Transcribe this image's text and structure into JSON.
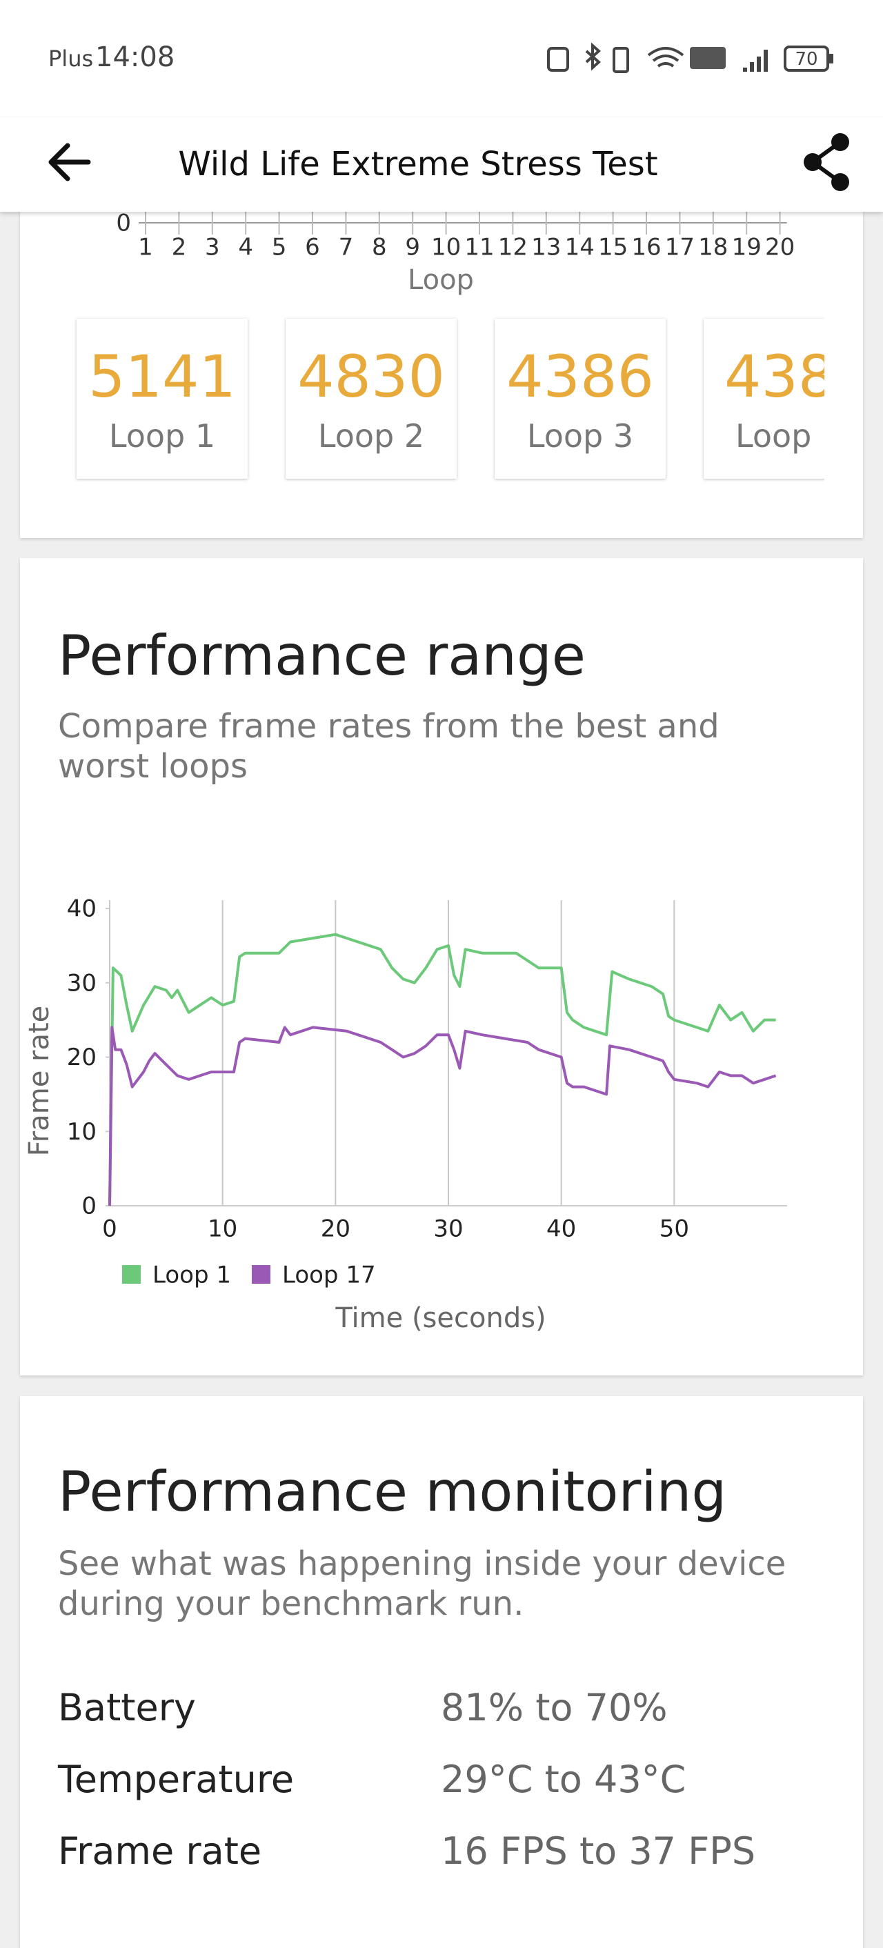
{
  "status_bar": {
    "carrier": "Plus",
    "time": "14:08",
    "battery": "70"
  },
  "header": {
    "title": "Wild Life Extreme Stress Test"
  },
  "chart_data": [
    {
      "type": "bar",
      "xlabel": "Loop",
      "categories": [
        "1",
        "2",
        "3",
        "4",
        "5",
        "6",
        "7",
        "8",
        "9",
        "10",
        "11",
        "12",
        "13",
        "14",
        "15",
        "16",
        "17",
        "18",
        "19",
        "20"
      ],
      "yticks": [
        0
      ]
    },
    {
      "type": "line",
      "title": "Performance range",
      "subtitle": "Compare frame rates from the best and worst loops",
      "xlabel": "Time (seconds)",
      "ylabel": "Frame rate",
      "xlim": [
        0,
        60
      ],
      "ylim": [
        0,
        40
      ],
      "xticks": [
        0,
        10,
        20,
        30,
        40,
        50
      ],
      "yticks": [
        0,
        10,
        20,
        30,
        40
      ],
      "grid": true,
      "series": [
        {
          "name": "Loop 1",
          "color": "#6cc97a",
          "x": [
            0,
            0.3,
            1,
            1.5,
            2,
            3,
            4,
            5,
            5.5,
            6,
            7,
            8,
            9,
            10,
            11,
            11.5,
            12,
            15,
            16,
            18,
            20,
            21,
            22,
            24,
            25,
            26,
            27,
            28,
            29,
            30,
            30.5,
            31,
            31.5,
            33,
            36,
            37,
            38,
            40,
            40.5,
            41,
            42,
            43,
            44,
            44.5,
            46,
            48,
            49,
            49.5,
            50,
            52,
            53,
            54,
            55,
            56,
            57,
            58,
            59
          ],
          "values": [
            0,
            32,
            31,
            27,
            23.5,
            27,
            29.5,
            29,
            28,
            29,
            26,
            27,
            28,
            27,
            27.5,
            33.5,
            34,
            34,
            35.5,
            36,
            36.5,
            36,
            35.5,
            34.5,
            32,
            30.5,
            30,
            32,
            34.5,
            35,
            31,
            29.5,
            34.5,
            34,
            34,
            33,
            32,
            32,
            26,
            25,
            24,
            23.5,
            23,
            31.5,
            30.5,
            29.5,
            28.5,
            25.5,
            25,
            24,
            23.5,
            27,
            25,
            26,
            23.5,
            25,
            25
          ]
        },
        {
          "name": "Loop 17",
          "color": "#9b59b6",
          "x": [
            0,
            0.2,
            0.5,
            1,
            1.5,
            2,
            3,
            3.5,
            4,
            5,
            6,
            7,
            8,
            9,
            10,
            11,
            11.5,
            12,
            15,
            15.5,
            16,
            17,
            18,
            21,
            22,
            24,
            25,
            26,
            27,
            28,
            29,
            30,
            30.5,
            31,
            31.5,
            33,
            35,
            37,
            38,
            39,
            40,
            40.5,
            41,
            42,
            43,
            44,
            44.3,
            46,
            48,
            49,
            49.5,
            50,
            52,
            53,
            53.5,
            54,
            55,
            56,
            57,
            58,
            59
          ],
          "values": [
            0,
            24,
            21,
            21,
            19,
            16,
            18,
            19.5,
            20.5,
            19,
            17.5,
            17,
            17.5,
            18,
            18,
            18,
            22,
            22.5,
            22,
            24,
            23,
            23.5,
            24,
            23.5,
            23,
            22,
            21,
            20,
            20.5,
            21.5,
            23,
            23,
            21,
            18.5,
            23.5,
            23,
            22.5,
            22,
            21,
            20.5,
            20,
            16.5,
            16,
            16,
            15.5,
            15,
            21.5,
            21,
            20,
            19.5,
            18,
            17,
            16.5,
            16,
            17,
            18,
            17.5,
            17.5,
            16.5,
            17,
            17.5
          ]
        }
      ]
    }
  ],
  "score_cards": [
    {
      "score": "5141",
      "label": "Loop 1"
    },
    {
      "score": "4830",
      "label": "Loop 2"
    },
    {
      "score": "4386",
      "label": "Loop 3"
    },
    {
      "score": "438",
      "label": "Loop"
    }
  ],
  "monitoring": {
    "title": "Performance monitoring",
    "subtitle": "See what was happening inside your device during your benchmark run.",
    "rows": [
      {
        "label": "Battery",
        "value": "81% to 70%"
      },
      {
        "label": "Temperature",
        "value": "29°C to 43°C"
      },
      {
        "label": "Frame rate",
        "value": "16 FPS to 37 FPS"
      }
    ]
  }
}
